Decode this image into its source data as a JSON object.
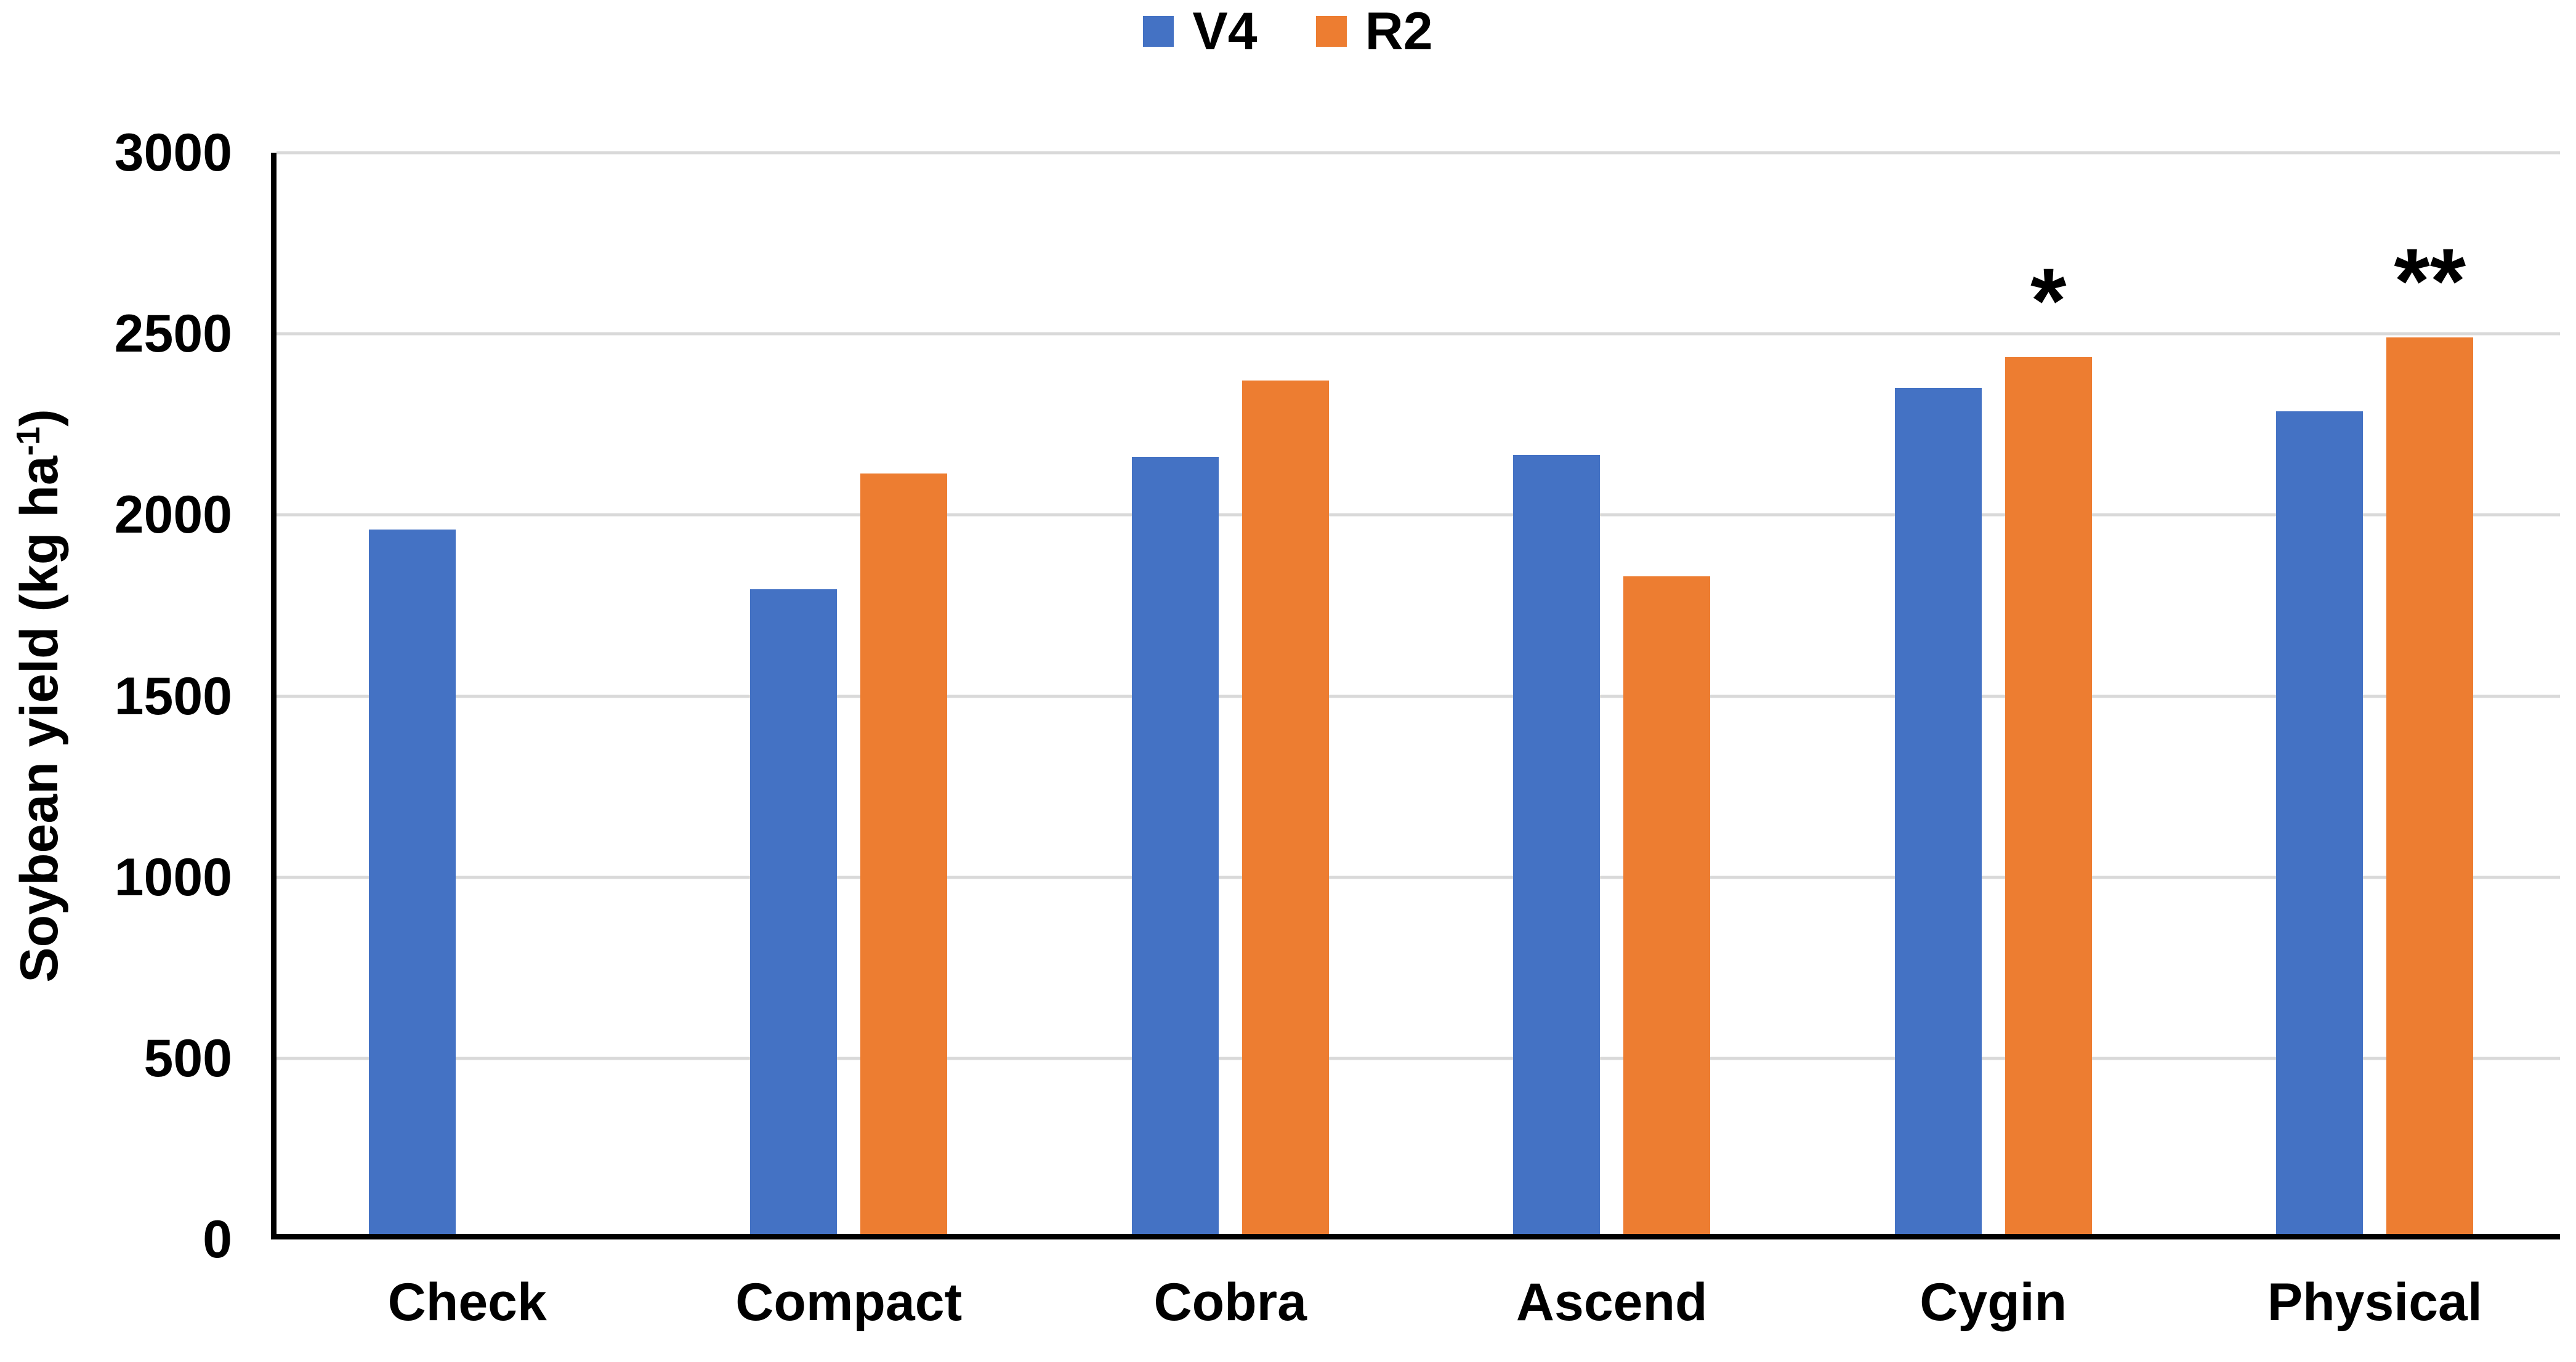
{
  "figure": {
    "background": "#FFFFFF"
  },
  "colors": {
    "series_v4": "#4472C4",
    "series_r2": "#ED7D31",
    "gridline": "#D9D9D9",
    "axis": "#000000",
    "text": "#000000"
  },
  "legend": {
    "position": "top-center",
    "items": [
      {
        "label": "V4",
        "color": "#4472C4"
      },
      {
        "label": "R2",
        "color": "#ED7D31"
      }
    ]
  },
  "y_axis": {
    "title_main": "Soybean yield (kg ha",
    "title_superscript": "-1",
    "title_close": ")",
    "min": 0,
    "max": 3000,
    "tick_step": 500
  },
  "chart_data": {
    "type": "bar",
    "title": "",
    "categories": [
      "Check",
      "Compact",
      "Cobra",
      "Ascend",
      "Cygin",
      "Physical"
    ],
    "series": [
      {
        "name": "V4",
        "color": "#4472C4",
        "values": [
          1945,
          1780,
          2145,
          2150,
          2335,
          2270
        ]
      },
      {
        "name": "R2",
        "color": "#ED7D31",
        "values": [
          null,
          2100,
          2355,
          1815,
          2420,
          2475
        ]
      }
    ],
    "annotations": [
      {
        "category": "Cygin",
        "series": "R2",
        "text": "*"
      },
      {
        "category": "Physical",
        "series": "R2",
        "text": "**"
      }
    ],
    "xlabel": "",
    "ylabel": "Soybean yield (kg ha-1)",
    "ylim": [
      0,
      3000
    ],
    "yticks": [
      0,
      500,
      1000,
      1500,
      2000,
      2500,
      3000
    ],
    "grid": true,
    "grid_color": "#D9D9D9",
    "legend_position": "top",
    "legend_entries": [
      "V4",
      "R2"
    ]
  }
}
